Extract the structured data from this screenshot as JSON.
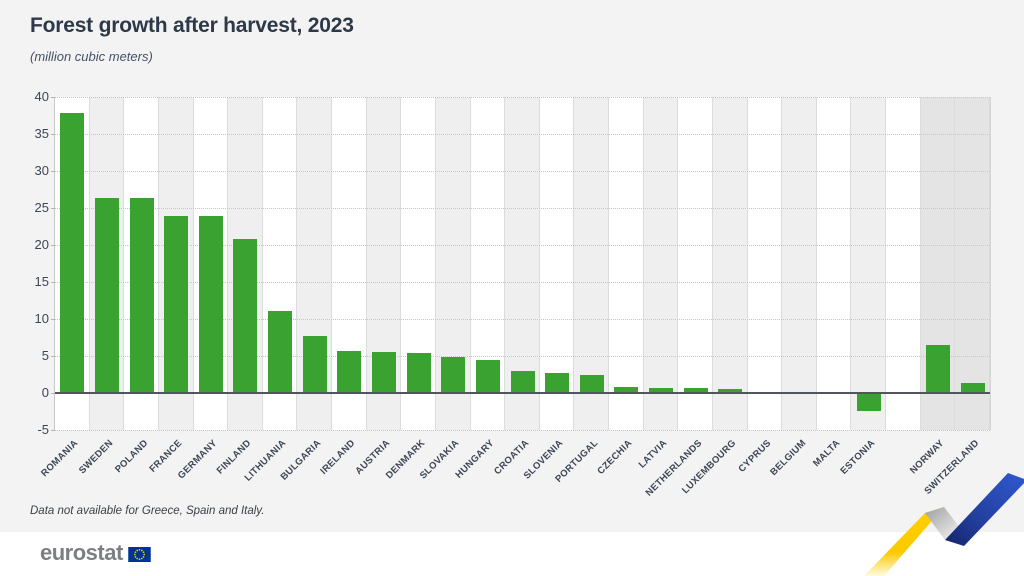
{
  "page": {
    "title": "Forest growth after harvest, 2023",
    "subtitle": "(million cubic meters)",
    "footnote": "Data not available for Greece, Spain and Italy.",
    "logo_text": "eurostat",
    "colors": {
      "bar_green": "#3aa230",
      "background": "#f3f3f3",
      "stripe_white": "#ffffff",
      "stripe_gray": "#efefef",
      "stripe_efta_gray": "#e4e4e4",
      "zero_line": "#51565d",
      "title_text": "#2d3848",
      "axis_text": "#3c4656",
      "logo_gray": "#7d7f83",
      "eu_flag_blue": "#003399",
      "eu_flag_stars": "#ffcc00",
      "ribbon_yellow": "#ffd000",
      "ribbon_blue": "#2f5ad2"
    }
  },
  "chart_data": {
    "type": "bar",
    "title": "Forest growth after harvest, 2023",
    "unit_label": "(million cubic meters)",
    "xlabel": "",
    "ylabel": "",
    "ylim": [
      -5,
      40
    ],
    "yticks": [
      40,
      35,
      30,
      25,
      20,
      15,
      10,
      5,
      0,
      -5
    ],
    "grid": "horizontal-dotted",
    "legend": "none",
    "columns": [
      {
        "label": "ROMANIA",
        "value": 37.9,
        "group": "eu"
      },
      {
        "label": "SWEDEN",
        "value": 26.4,
        "group": "eu"
      },
      {
        "label": "POLAND",
        "value": 26.3,
        "group": "eu"
      },
      {
        "label": "FRANCE",
        "value": 23.9,
        "group": "eu"
      },
      {
        "label": "GERMANY",
        "value": 23.9,
        "group": "eu"
      },
      {
        "label": "FINLAND",
        "value": 20.8,
        "group": "eu"
      },
      {
        "label": "LITHUANIA",
        "value": 11.1,
        "group": "eu"
      },
      {
        "label": "BULGARIA",
        "value": 7.7,
        "group": "eu"
      },
      {
        "label": "IRELAND",
        "value": 5.7,
        "group": "eu"
      },
      {
        "label": "AUSTRIA",
        "value": 5.6,
        "group": "eu"
      },
      {
        "label": "DENMARK",
        "value": 5.4,
        "group": "eu"
      },
      {
        "label": "SLOVAKIA",
        "value": 4.9,
        "group": "eu"
      },
      {
        "label": "HUNGARY",
        "value": 4.4,
        "group": "eu"
      },
      {
        "label": "CROATIA",
        "value": 3.0,
        "group": "eu"
      },
      {
        "label": "SLOVENIA",
        "value": 2.7,
        "group": "eu"
      },
      {
        "label": "PORTUGAL",
        "value": 2.5,
        "group": "eu"
      },
      {
        "label": "CZECHIA",
        "value": 0.8,
        "group": "eu"
      },
      {
        "label": "LATVIA",
        "value": 0.7,
        "group": "eu"
      },
      {
        "label": "NETHERLANDS",
        "value": 0.7,
        "group": "eu"
      },
      {
        "label": "LUXEMBOURG",
        "value": 0.5,
        "group": "eu"
      },
      {
        "label": "CYPRUS",
        "value": 0.2,
        "group": "eu"
      },
      {
        "label": "BELGIUM",
        "value": 0.1,
        "group": "eu"
      },
      {
        "label": "MALTA",
        "value": 0.0,
        "group": "eu"
      },
      {
        "label": "ESTONIA",
        "value": -2.4,
        "group": "eu"
      },
      {
        "label": "",
        "value": null,
        "group": "gap"
      },
      {
        "label": "NORWAY",
        "value": 6.5,
        "group": "efta"
      },
      {
        "label": "SWITZERLAND",
        "value": 1.3,
        "group": "efta"
      }
    ]
  }
}
